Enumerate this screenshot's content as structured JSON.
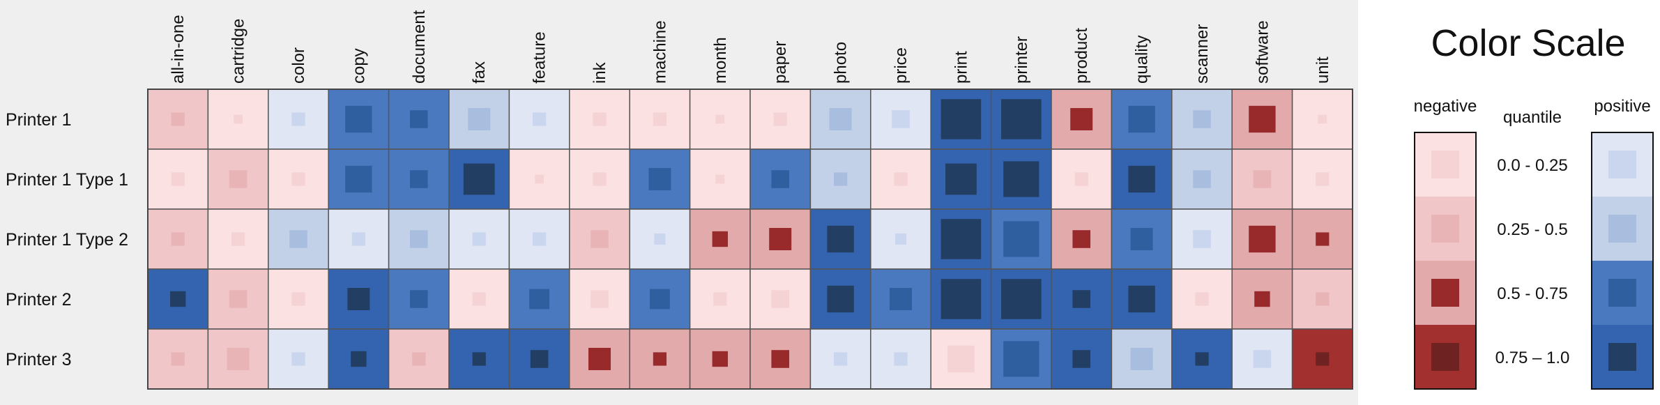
{
  "chart_data": {
    "type": "heatmap",
    "rows": [
      "Printer 1",
      "Printer 1 Type 1",
      "Printer 1 Type 2",
      "Printer 2",
      "Printer 3"
    ],
    "columns": [
      "all-in-one",
      "cartridge",
      "color",
      "copy",
      "document",
      "fax",
      "feature",
      "ink",
      "machine",
      "month",
      "paper",
      "photo",
      "price",
      "print",
      "printer",
      "product",
      "quality",
      "scanner",
      "software",
      "unit"
    ],
    "cells": [
      [
        [
          -0.3,
          0.3
        ],
        [
          -0.1,
          0.2
        ],
        [
          0.1,
          0.3
        ],
        [
          0.7,
          0.6
        ],
        [
          0.6,
          0.4
        ],
        [
          0.4,
          0.5
        ],
        [
          0.2,
          0.3
        ],
        [
          -0.2,
          0.3
        ],
        [
          -0.2,
          0.3
        ],
        [
          -0.2,
          0.2
        ],
        [
          -0.2,
          0.3
        ],
        [
          0.4,
          0.5
        ],
        [
          0.2,
          0.4
        ],
        [
          0.95,
          0.9
        ],
        [
          0.95,
          0.9
        ],
        [
          -0.6,
          0.5
        ],
        [
          0.6,
          0.6
        ],
        [
          0.4,
          0.4
        ],
        [
          -0.6,
          0.6
        ],
        [
          -0.1,
          0.2
        ]
      ],
      [
        [
          -0.1,
          0.3
        ],
        [
          -0.3,
          0.4
        ],
        [
          -0.1,
          0.3
        ],
        [
          0.7,
          0.6
        ],
        [
          0.6,
          0.4
        ],
        [
          0.8,
          0.7
        ],
        [
          -0.1,
          0.2
        ],
        [
          -0.2,
          0.3
        ],
        [
          0.6,
          0.5
        ],
        [
          -0.1,
          0.2
        ],
        [
          0.7,
          0.4
        ],
        [
          0.4,
          0.3
        ],
        [
          -0.2,
          0.3
        ],
        [
          0.9,
          0.7
        ],
        [
          0.9,
          0.8
        ],
        [
          -0.2,
          0.3
        ],
        [
          0.8,
          0.6
        ],
        [
          0.4,
          0.4
        ],
        [
          -0.3,
          0.4
        ],
        [
          -0.2,
          0.3
        ]
      ],
      [
        [
          -0.3,
          0.3
        ],
        [
          -0.1,
          0.3
        ],
        [
          0.3,
          0.4
        ],
        [
          0.1,
          0.3
        ],
        [
          0.3,
          0.4
        ],
        [
          0.2,
          0.3
        ],
        [
          0.1,
          0.3
        ],
        [
          -0.3,
          0.4
        ],
        [
          0.1,
          0.25
        ],
        [
          -0.6,
          0.35
        ],
        [
          -0.6,
          0.5
        ],
        [
          0.8,
          0.6
        ],
        [
          0.1,
          0.25
        ],
        [
          0.95,
          0.9
        ],
        [
          0.6,
          0.8
        ],
        [
          -0.6,
          0.4
        ],
        [
          0.6,
          0.5
        ],
        [
          0.2,
          0.4
        ],
        [
          -0.7,
          0.6
        ],
        [
          -0.6,
          0.3
        ]
      ],
      [
        [
          0.8,
          0.35
        ],
        [
          -0.3,
          0.4
        ],
        [
          -0.1,
          0.3
        ],
        [
          0.8,
          0.5
        ],
        [
          0.6,
          0.4
        ],
        [
          -0.1,
          0.3
        ],
        [
          0.7,
          0.45
        ],
        [
          -0.1,
          0.4
        ],
        [
          0.6,
          0.45
        ],
        [
          -0.1,
          0.3
        ],
        [
          -0.1,
          0.4
        ],
        [
          0.8,
          0.6
        ],
        [
          0.6,
          0.5
        ],
        [
          0.95,
          0.9
        ],
        [
          0.95,
          0.9
        ],
        [
          0.8,
          0.4
        ],
        [
          0.85,
          0.6
        ],
        [
          -0.1,
          0.3
        ],
        [
          -0.6,
          0.35
        ],
        [
          -0.3,
          0.3
        ]
      ],
      [
        [
          -0.3,
          0.3
        ],
        [
          -0.3,
          0.5
        ],
        [
          0.1,
          0.3
        ],
        [
          0.8,
          0.35
        ],
        [
          -0.3,
          0.3
        ],
        [
          0.8,
          0.3
        ],
        [
          0.8,
          0.4
        ],
        [
          -0.7,
          0.5
        ],
        [
          -0.6,
          0.3
        ],
        [
          -0.6,
          0.35
        ],
        [
          -0.6,
          0.4
        ],
        [
          0.1,
          0.3
        ],
        [
          0.1,
          0.3
        ],
        [
          -0.1,
          0.6
        ],
        [
          0.6,
          0.8
        ],
        [
          0.8,
          0.4
        ],
        [
          0.3,
          0.5
        ],
        [
          0.8,
          0.3
        ],
        [
          0.2,
          0.4
        ],
        [
          -0.9,
          0.3
        ]
      ]
    ],
    "cell_encoding": "[value, size]: value sign gives negative/positive, magnitude gives quantile color; size is relative size of inner square (0-1)",
    "legend": {
      "title": "Color Scale",
      "negative_label": "negative",
      "quantile_label": "quantile",
      "positive_label": "positive",
      "quantiles": [
        "0.0 - 0.25",
        "0.25 - 0.5",
        "0.5 - 0.75",
        "0.75 – 1.0"
      ]
    },
    "colors": {
      "negative": [
        "#fbe1e1",
        "#f0c6c8",
        "#e3aaac",
        "#a2302e"
      ],
      "negative_inner": [
        "#f5d3d5",
        "#e8b4b6",
        "#982a2b",
        "#6e2322"
      ],
      "positive": [
        "#e0e6f4",
        "#c2d0e8",
        "#4a79bf",
        "#3463b0"
      ],
      "positive_inner": [
        "#c9d6ee",
        "#a9bedf",
        "#2f5f9f",
        "#223f63"
      ]
    }
  }
}
